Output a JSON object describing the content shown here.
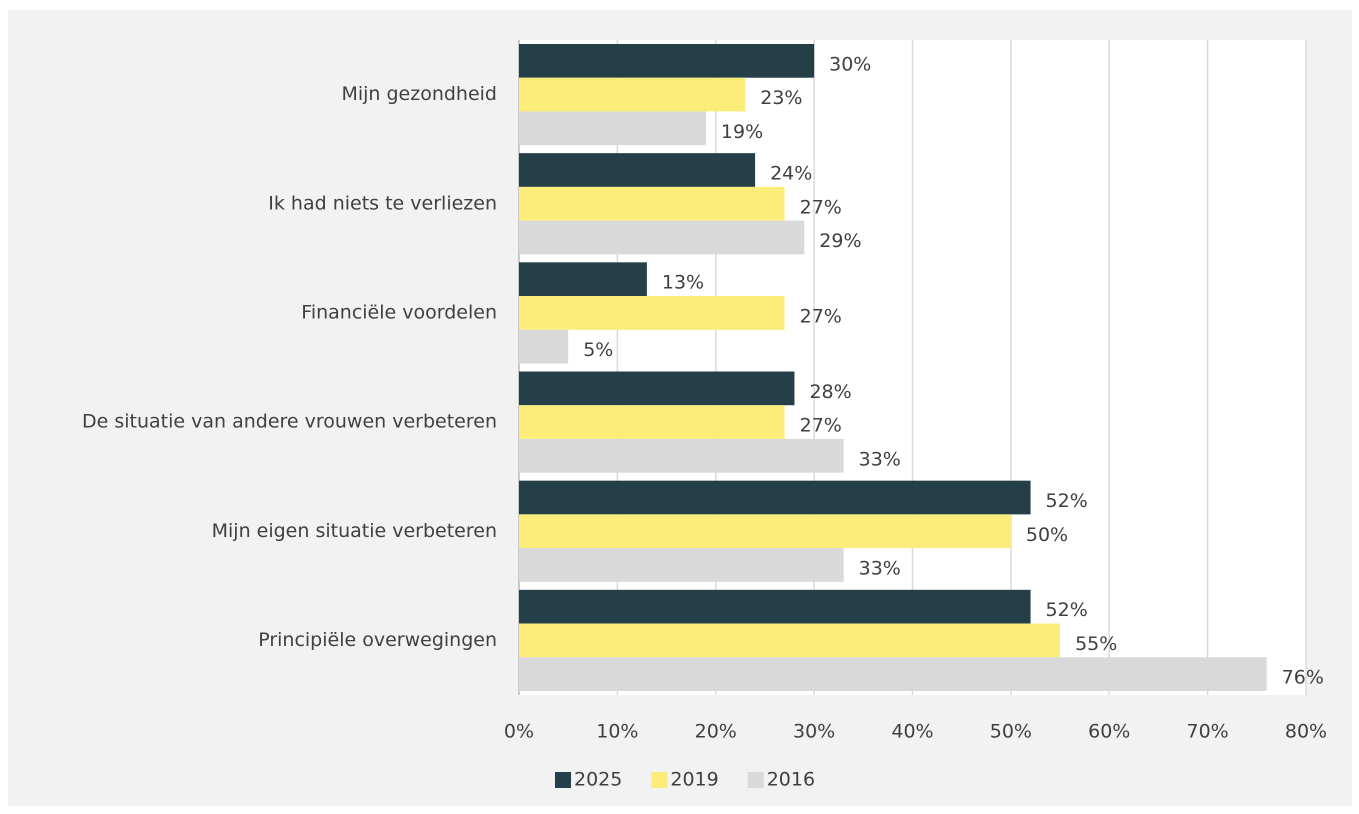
{
  "chart_data": {
    "type": "hbar",
    "categories": [
      "Mijn gezondheid",
      "Ik had niets te verliezen",
      "Financiële voordelen",
      "De situatie van andere vrouwen verbeteren",
      "Mijn eigen situatie verbeteren",
      "Principiële overwegingen"
    ],
    "series": [
      {
        "name": "2025",
        "color": "#243f47",
        "values": [
          30,
          24,
          13,
          28,
          52,
          52
        ],
        "value_labels": [
          "30%",
          "24%",
          "13%",
          "28%",
          "52%",
          "52%"
        ]
      },
      {
        "name": "2019",
        "color": "#fcec7a",
        "values": [
          23,
          27,
          27,
          27,
          50,
          55
        ],
        "value_labels": [
          "23%",
          "27%",
          "27%",
          "27%",
          "50%",
          "55%"
        ]
      },
      {
        "name": "2016",
        "color": "#d9d9d9",
        "values": [
          19,
          29,
          5,
          33,
          33,
          76
        ],
        "value_labels": [
          "19%",
          "29%",
          "5%",
          "33%",
          "33%",
          "76%"
        ]
      }
    ],
    "xlim": [
      0,
      80
    ],
    "xticks": [
      {
        "value": 0,
        "label": "0%"
      },
      {
        "value": 10,
        "label": "10%"
      },
      {
        "value": 20,
        "label": "20%"
      },
      {
        "value": 30,
        "label": "30%"
      },
      {
        "value": 40,
        "label": "40%"
      },
      {
        "value": 50,
        "label": "50%"
      },
      {
        "value": 60,
        "label": "60%"
      },
      {
        "value": 70,
        "label": "70%"
      },
      {
        "value": 80,
        "label": "80%"
      }
    ],
    "grid": true,
    "legend": "bottom"
  }
}
